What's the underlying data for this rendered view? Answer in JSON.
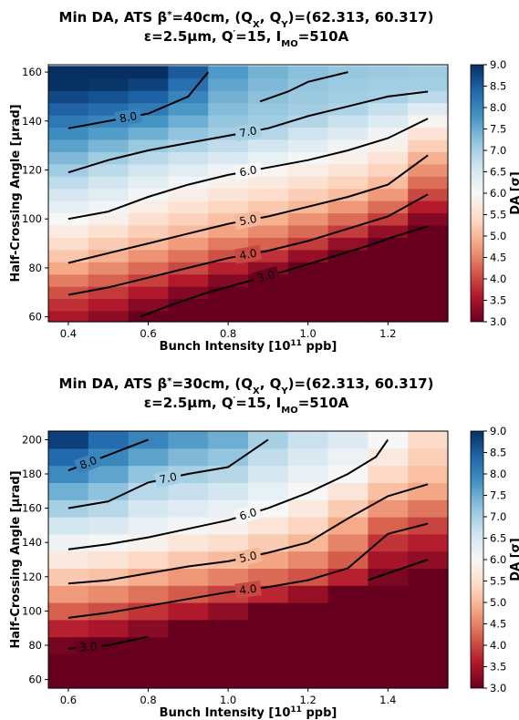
{
  "chart_data": [
    {
      "type": "heatmap",
      "title_line1": "Min DA, ATS β*=40cm, (QX, QY)=(62.313, 60.317)",
      "title_line2": "ε=2.5μm, Q′=15, IMO=510A",
      "xlabel": "Bunch Intensity [10^11 ppb]",
      "ylabel": "Half-Crossing Angle [μrad]",
      "colorbar_label": "DA [σ]",
      "x_ticks": [
        "0.4",
        "0.6",
        "0.8",
        "1.0",
        "1.2"
      ],
      "y_ticks": [
        "60",
        "80",
        "100",
        "120",
        "140",
        "160"
      ],
      "colorbar_ticks": [
        "3.0",
        "3.5",
        "4.0",
        "4.5",
        "5.0",
        "5.5",
        "6.0",
        "6.5",
        "7.0",
        "7.5",
        "8.0",
        "8.5",
        "9.0"
      ],
      "xlim": [
        0.35,
        1.35
      ],
      "ylim": [
        58,
        163
      ],
      "vlim": [
        3.0,
        9.0
      ],
      "x": [
        0.4,
        0.5,
        0.6,
        0.7,
        0.8,
        0.9,
        1.0,
        1.1,
        1.2,
        1.3
      ],
      "y": [
        60,
        65,
        70,
        75,
        80,
        85,
        90,
        95,
        100,
        105,
        110,
        115,
        120,
        125,
        130,
        135,
        140,
        145,
        150,
        155,
        160
      ],
      "contours": [
        {
          "level": "3.0",
          "points": [
            [
              0.58,
              60
            ],
            [
              0.66,
              65
            ],
            [
              0.75,
              70
            ],
            [
              0.84,
              74
            ],
            [
              0.95,
              79
            ],
            [
              1.05,
              84
            ],
            [
              1.15,
              89
            ],
            [
              1.22,
              93
            ],
            [
              1.3,
              97
            ]
          ]
        },
        {
          "level": "4.0",
          "points": [
            [
              0.4,
              69
            ],
            [
              0.5,
              72
            ],
            [
              0.6,
              76
            ],
            [
              0.7,
              80
            ],
            [
              0.8,
              84
            ],
            [
              0.9,
              87
            ],
            [
              1.0,
              91
            ],
            [
              1.1,
              96
            ],
            [
              1.2,
              101
            ],
            [
              1.3,
              110
            ]
          ]
        },
        {
          "level": "5.0",
          "points": [
            [
              0.4,
              82
            ],
            [
              0.5,
              86
            ],
            [
              0.6,
              90
            ],
            [
              0.7,
              94
            ],
            [
              0.8,
              98
            ],
            [
              0.9,
              101
            ],
            [
              1.0,
              105
            ],
            [
              1.1,
              109
            ],
            [
              1.2,
              114
            ],
            [
              1.3,
              126
            ]
          ]
        },
        {
          "level": "6.0",
          "points": [
            [
              0.4,
              100
            ],
            [
              0.5,
              103
            ],
            [
              0.6,
              109
            ],
            [
              0.7,
              114
            ],
            [
              0.8,
              118
            ],
            [
              0.9,
              121
            ],
            [
              1.0,
              124
            ],
            [
              1.1,
              128
            ],
            [
              1.2,
              133
            ],
            [
              1.3,
              141
            ]
          ]
        },
        {
          "level": "7.0",
          "points": [
            [
              0.4,
              119
            ],
            [
              0.5,
              124
            ],
            [
              0.6,
              128
            ],
            [
              0.7,
              131
            ],
            [
              0.8,
              134
            ],
            [
              0.9,
              137
            ],
            [
              1.0,
              142
            ],
            [
              1.1,
              146
            ],
            [
              1.2,
              150
            ],
            [
              1.3,
              152
            ]
          ]
        },
        {
          "level": "8.0",
          "points": [
            [
              0.4,
              137
            ],
            [
              0.5,
              140
            ],
            [
              0.6,
              143
            ],
            [
              0.7,
              150
            ],
            [
              0.75,
              160
            ]
          ]
        },
        {
          "level": "",
          "points": [
            [
              0.88,
              148
            ],
            [
              0.95,
              152
            ],
            [
              1.0,
              156
            ],
            [
              1.1,
              160
            ]
          ]
        }
      ]
    },
    {
      "type": "heatmap",
      "title_line1": "Min DA, ATS β*=30cm, (QX, QY)=(62.313, 60.317)",
      "title_line2": "ε=2.5μm, Q′=15, IMO=510A",
      "xlabel": "Bunch Intensity [10^11 ppb]",
      "ylabel": "Half-Crossing Angle [μrad]",
      "colorbar_label": "DA [σ]",
      "x_ticks": [
        "0.6",
        "0.8",
        "1.0",
        "1.2",
        "1.4"
      ],
      "y_ticks": [
        "60",
        "80",
        "100",
        "120",
        "140",
        "160",
        "180",
        "200"
      ],
      "colorbar_ticks": [
        "3.0",
        "3.5",
        "4.0",
        "4.5",
        "5.0",
        "5.5",
        "6.0",
        "6.5",
        "7.0",
        "7.5",
        "8.0",
        "8.5",
        "9.0"
      ],
      "xlim": [
        0.55,
        1.55
      ],
      "ylim": [
        55,
        205
      ],
      "vlim": [
        3.0,
        9.0
      ],
      "x": [
        0.6,
        0.7,
        0.8,
        0.9,
        1.0,
        1.1,
        1.2,
        1.3,
        1.4,
        1.5
      ],
      "y": [
        60,
        70,
        80,
        90,
        100,
        110,
        120,
        130,
        140,
        150,
        160,
        170,
        180,
        190,
        200
      ],
      "contours": [
        {
          "level": "3.0",
          "points": [
            [
              0.6,
              78
            ],
            [
              0.7,
              80
            ],
            [
              0.8,
              85
            ]
          ]
        },
        {
          "level": "",
          "points": [
            [
              1.35,
              118
            ],
            [
              1.4,
              122
            ],
            [
              1.5,
              130
            ]
          ]
        },
        {
          "level": "4.0",
          "points": [
            [
              0.6,
              96
            ],
            [
              0.7,
              99
            ],
            [
              0.8,
              103
            ],
            [
              0.9,
              107
            ],
            [
              1.0,
              111
            ],
            [
              1.1,
              114
            ],
            [
              1.2,
              118
            ],
            [
              1.3,
              125
            ],
            [
              1.4,
              145
            ],
            [
              1.5,
              151
            ]
          ]
        },
        {
          "level": "5.0",
          "points": [
            [
              0.6,
              116
            ],
            [
              0.7,
              118
            ],
            [
              0.8,
              122
            ],
            [
              0.9,
              126
            ],
            [
              1.0,
              129
            ],
            [
              1.1,
              134
            ],
            [
              1.2,
              140
            ],
            [
              1.3,
              154
            ],
            [
              1.4,
              167
            ],
            [
              1.5,
              174
            ]
          ]
        },
        {
          "level": "6.0",
          "points": [
            [
              0.6,
              136
            ],
            [
              0.7,
              139
            ],
            [
              0.8,
              143
            ],
            [
              0.9,
              148
            ],
            [
              1.0,
              153
            ],
            [
              1.1,
              160
            ],
            [
              1.2,
              169
            ],
            [
              1.3,
              180
            ],
            [
              1.37,
              190
            ],
            [
              1.4,
              200
            ]
          ]
        },
        {
          "level": "7.0",
          "points": [
            [
              0.6,
              160
            ],
            [
              0.7,
              164
            ],
            [
              0.8,
              175
            ],
            [
              0.9,
              180
            ],
            [
              1.0,
              184
            ],
            [
              1.1,
              200
            ]
          ]
        },
        {
          "level": "8.0",
          "points": [
            [
              0.6,
              182
            ],
            [
              0.7,
              191
            ],
            [
              0.8,
              200
            ]
          ]
        }
      ]
    }
  ]
}
